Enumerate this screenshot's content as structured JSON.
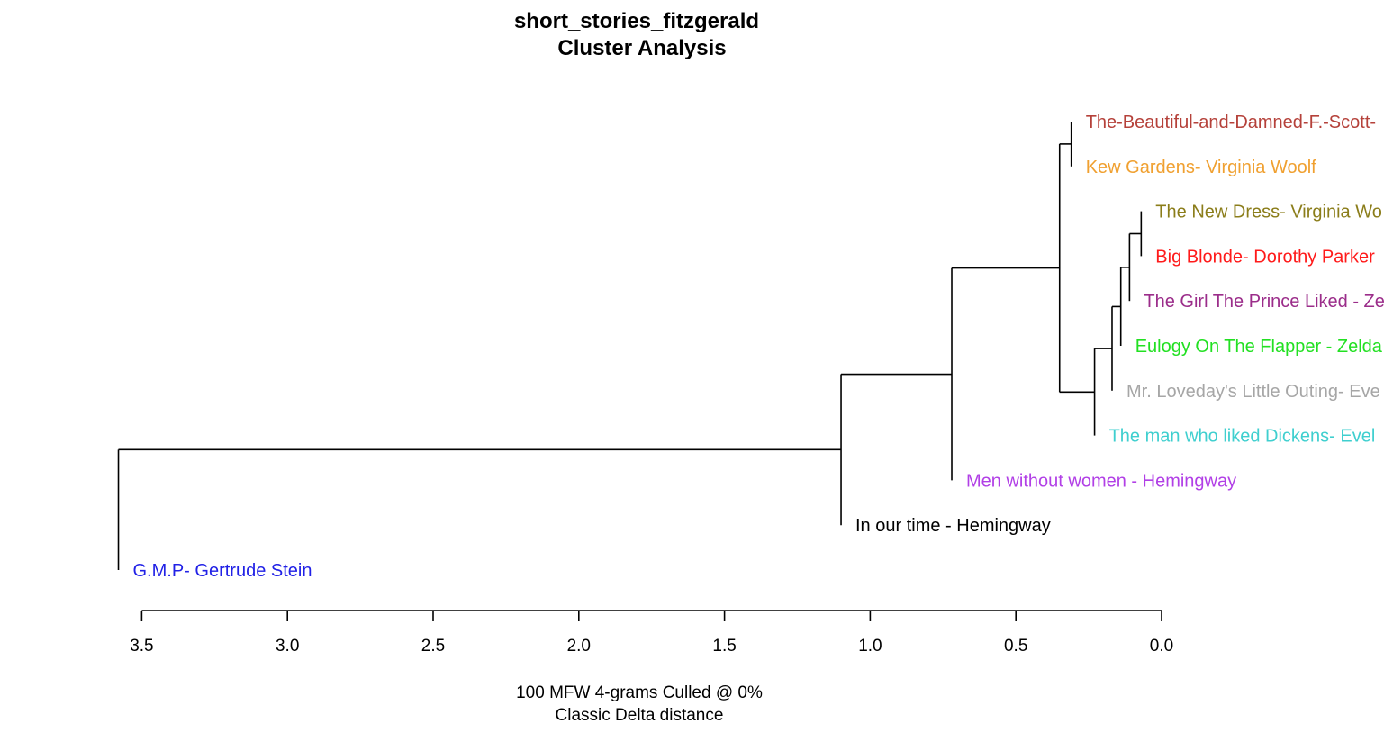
{
  "chart_data": {
    "type": "dendrogram",
    "title": "short_stories_fitzgerald",
    "subtitle": "Cluster Analysis",
    "xlabel_line1": "100 MFW 4-grams Culled @ 0%",
    "xlabel_line2": "Classic Delta distance",
    "xlim": [
      3.5,
      0.0
    ],
    "ticks": [
      3.5,
      3.0,
      2.5,
      2.0,
      1.5,
      1.0,
      0.5,
      0.0
    ],
    "tick_labels": [
      "3.5",
      "3.0",
      "2.5",
      "2.0",
      "1.5",
      "1.0",
      "0.5",
      "0.0"
    ],
    "leaves": [
      {
        "label": "The-Beautiful-and-Damned-F.-Scott-",
        "color": "#b5413a"
      },
      {
        "label": "Kew Gardens- Virginia Woolf",
        "color": "#f0a030"
      },
      {
        "label": "The New Dress- Virginia Wo",
        "color": "#8b7d1a"
      },
      {
        "label": "Big Blonde- Dorothy Parker",
        "color": "#ff1a1a"
      },
      {
        "label": "The Girl The Prince Liked - Ze",
        "color": "#9b2d8a"
      },
      {
        "label": "Eulogy On The Flapper - Zelda",
        "color": "#22e022"
      },
      {
        "label": "Mr. Loveday's Little Outing- Eve",
        "color": "#a6a6a6"
      },
      {
        "label": "The man who liked Dickens- Evel",
        "color": "#3fcfcf"
      },
      {
        "label": "Men without women - Hemingway",
        "color": "#b13fe6"
      },
      {
        "label": "In our time - Hemingway",
        "color": "#000000"
      },
      {
        "label": "G.M.P- Gertrude Stein",
        "color": "#2121e6"
      }
    ],
    "merges": [
      {
        "id": "A",
        "children": [
          "L0",
          "L1"
        ],
        "height": 0.31
      },
      {
        "id": "B",
        "children": [
          "L2",
          "L3"
        ],
        "height": 0.07
      },
      {
        "id": "C",
        "children": [
          "B",
          "L4"
        ],
        "height": 0.11
      },
      {
        "id": "D",
        "children": [
          "C",
          "L5"
        ],
        "height": 0.14
      },
      {
        "id": "E",
        "children": [
          "D",
          "L6"
        ],
        "height": 0.17
      },
      {
        "id": "F",
        "children": [
          "E",
          "L7"
        ],
        "height": 0.23
      },
      {
        "id": "G",
        "children": [
          "A",
          "F"
        ],
        "height": 0.35
      },
      {
        "id": "H",
        "children": [
          "G",
          "L8"
        ],
        "height": 0.72
      },
      {
        "id": "I",
        "children": [
          "H",
          "L9"
        ],
        "height": 1.1
      },
      {
        "id": "J",
        "children": [
          "I",
          "L10"
        ],
        "height": 3.58
      }
    ]
  }
}
